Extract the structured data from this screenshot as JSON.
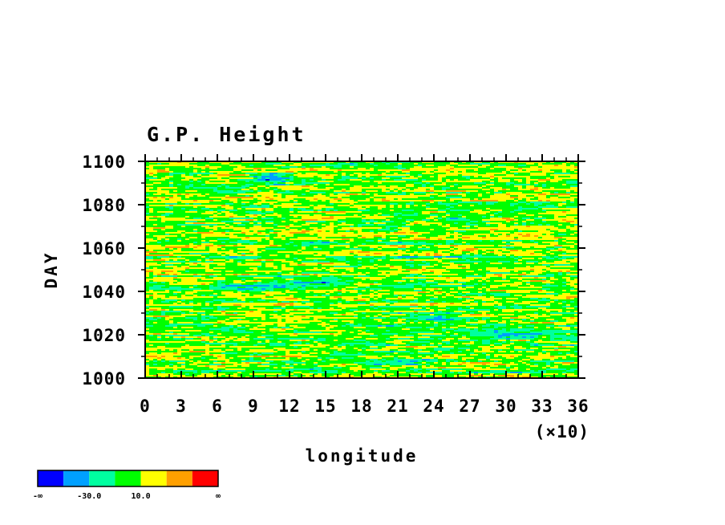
{
  "chart_data": {
    "type": "heatmap",
    "title": "G.P. Height",
    "xlabel": "longitude",
    "x_scale_note": "(×10)",
    "ylabel": "DAY",
    "xlim": [
      0,
      36
    ],
    "ylim": [
      1000,
      1100
    ],
    "x_ticks": [
      0,
      3,
      6,
      9,
      12,
      15,
      18,
      21,
      24,
      27,
      30,
      33,
      36
    ],
    "x_tick_labels": [
      "0",
      "3",
      "6",
      "9",
      "12",
      "15",
      "18",
      "21",
      "24",
      "27",
      "30",
      "33",
      "36"
    ],
    "y_ticks": [
      1000,
      1020,
      1040,
      1060,
      1080,
      1100
    ],
    "y_tick_labels": [
      "1000",
      "1020",
      "1040",
      "1060",
      "1080",
      "1100"
    ],
    "colorbar": {
      "colors": [
        "#0000ff",
        "#00a0ff",
        "#00ffa0",
        "#00ff00",
        "#ffff00",
        "#ffa000",
        "#ff0000"
      ],
      "labels": [
        "-∞",
        "-30.0",
        "10.0",
        "∞"
      ]
    },
    "description_fields": {
      "field": "geopotential height anomaly, noisy banded pattern, day vs longitude"
    }
  }
}
